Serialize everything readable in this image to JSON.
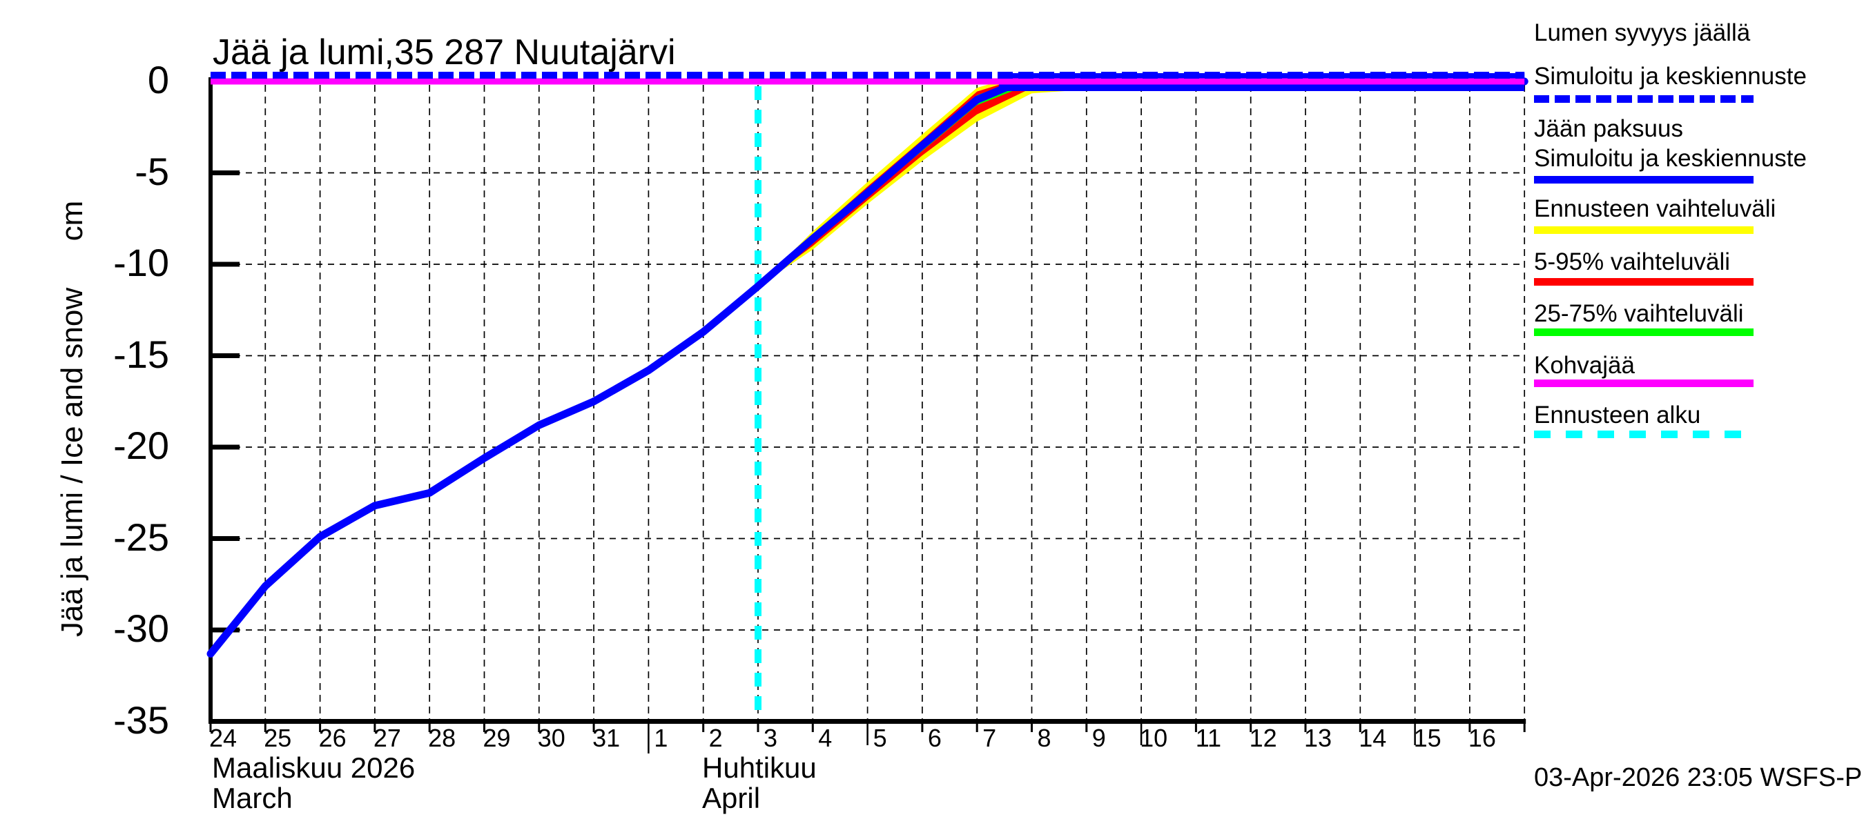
{
  "title": "Jää ja lumi,35 287 Nuutajärvi",
  "y_axis": {
    "label": "Jää ja lumi / Ice and snow",
    "unit": "cm",
    "tick_labels": [
      "0",
      "-5",
      "-10",
      "-15",
      "-20",
      "-25",
      "-30",
      "-35"
    ]
  },
  "x_axis": {
    "march": {
      "days": [
        "24",
        "25",
        "26",
        "27",
        "28",
        "29",
        "30",
        "31"
      ],
      "month_fi": "Maaliskuu 2026",
      "month_en": "March"
    },
    "april": {
      "days": [
        "1",
        "2",
        "3",
        "4",
        "5",
        "6",
        "7",
        "8",
        "9",
        "10",
        "11",
        "12",
        "13",
        "14",
        "15",
        "16"
      ],
      "month_fi": "Huhtikuu",
      "month_en": "April"
    }
  },
  "footer": "03-Apr-2026 23:05 WSFS-P",
  "colors": {
    "simulated": "#0000ff",
    "forecast_range": "#ffff00",
    "range_5_95": "#ff0000",
    "range_25_75": "#00ff00",
    "kohvajaa": "#ff00ff",
    "forecast_start": "#00ffff",
    "grid": "#000000"
  },
  "legend": [
    {
      "lines": [
        "Lumen syvyys jäällä",
        "Simuloitu ja keskiennuste"
      ],
      "color": "#0000ff",
      "style": "dashed"
    },
    {
      "lines": [
        "Jään paksuus",
        "Simuloitu ja keskiennuste"
      ],
      "color": "#0000ff",
      "style": "solid"
    },
    {
      "lines": [
        "Ennusteen vaihteluväli"
      ],
      "color": "#ffff00",
      "style": "solid"
    },
    {
      "lines": [
        "5-95% vaihteluväli"
      ],
      "color": "#ff0000",
      "style": "solid"
    },
    {
      "lines": [
        "25-75% vaihteluväli"
      ],
      "color": "#00ff00",
      "style": "solid"
    },
    {
      "lines": [
        "Kohvajää"
      ],
      "color": "#ff00ff",
      "style": "solid"
    },
    {
      "lines": [
        "Ennusteen alku"
      ],
      "color": "#00ffff",
      "style": "dashed"
    }
  ],
  "chart_data": {
    "type": "line",
    "title": "Jää ja lumi,35 287 Nuutajärvi",
    "ylabel": "Jää ja lumi / Ice and snow (cm)",
    "ylim": [
      -35,
      0
    ],
    "x_unit": "days_since_2026-03-24",
    "x_range": [
      0,
      24
    ],
    "x_tick_days": [
      "24 Mar",
      "25 Mar",
      "26 Mar",
      "27 Mar",
      "28 Mar",
      "29 Mar",
      "30 Mar",
      "31 Mar",
      "1 Apr",
      "2 Apr",
      "3 Apr",
      "4 Apr",
      "5 Apr",
      "6 Apr",
      "7 Apr",
      "8 Apr",
      "9 Apr",
      "10 Apr",
      "11 Apr",
      "12 Apr",
      "13 Apr",
      "14 Apr",
      "15 Apr",
      "16 Apr"
    ],
    "grid": true,
    "forecast_start_x": 10,
    "series": [
      {
        "name": "Lumen syvyys jäällä — Simuloitu ja keskiennuste",
        "type": "line",
        "style": "dashed",
        "color": "#0000ff",
        "points": [
          [
            0,
            0
          ],
          [
            24,
            0
          ]
        ]
      },
      {
        "name": "Kohvajää",
        "type": "line",
        "style": "solid",
        "color": "#ff00ff",
        "points": [
          [
            0,
            0
          ],
          [
            24,
            0
          ]
        ]
      },
      {
        "name": "Jään paksuus — Simuloitu ja keskiennuste",
        "type": "line",
        "style": "solid",
        "color": "#0000ff",
        "points": [
          [
            0,
            -31.3
          ],
          [
            1,
            -27.6
          ],
          [
            2,
            -24.9
          ],
          [
            3,
            -23.2
          ],
          [
            4,
            -22.5
          ],
          [
            5,
            -20.6
          ],
          [
            6,
            -18.8
          ],
          [
            7,
            -17.5
          ],
          [
            8,
            -15.8
          ],
          [
            9,
            -13.7
          ],
          [
            10,
            -11.2
          ],
          [
            11,
            -8.6
          ],
          [
            12,
            -6.1
          ],
          [
            13,
            -3.5
          ],
          [
            14,
            -1.0
          ],
          [
            14.6,
            -0.25
          ],
          [
            15,
            0
          ],
          [
            24,
            0
          ]
        ]
      },
      {
        "name": "Ennusteen vaihteluväli",
        "type": "band",
        "color": "#ffff00",
        "upper": [
          [
            10,
            -11.2
          ],
          [
            11,
            -8.2
          ],
          [
            12,
            -5.5
          ],
          [
            13,
            -2.9
          ],
          [
            14,
            -0.35
          ],
          [
            14.4,
            0
          ],
          [
            18.1,
            0
          ]
        ],
        "lower": [
          [
            10,
            -11.2
          ],
          [
            11,
            -9.2
          ],
          [
            12,
            -6.7
          ],
          [
            13,
            -4.35
          ],
          [
            14,
            -2.2
          ],
          [
            15,
            -0.65
          ],
          [
            16,
            -0.45
          ],
          [
            17,
            -0.25
          ],
          [
            18.1,
            0
          ]
        ]
      },
      {
        "name": "5-95% vaihteluväli",
        "type": "band",
        "color": "#ff0000",
        "upper": [
          [
            10,
            -11.2
          ],
          [
            11,
            -8.4
          ],
          [
            12,
            -5.75
          ],
          [
            13,
            -3.2
          ],
          [
            14,
            -0.55
          ],
          [
            14.6,
            0
          ],
          [
            15.6,
            0
          ]
        ],
        "lower": [
          [
            10,
            -11.2
          ],
          [
            11,
            -9.0
          ],
          [
            12,
            -6.5
          ],
          [
            13,
            -4.05
          ],
          [
            14,
            -1.8
          ],
          [
            14.9,
            -0.5
          ],
          [
            15.6,
            0
          ]
        ]
      },
      {
        "name": "25-75% vaihteluväli",
        "type": "band",
        "color": "#00ff00",
        "upper": [
          [
            10,
            -11.2
          ],
          [
            11,
            -8.5
          ],
          [
            12,
            -5.9
          ],
          [
            13,
            -3.35
          ],
          [
            14,
            -0.75
          ],
          [
            14.7,
            0
          ],
          [
            15.3,
            0
          ]
        ],
        "lower": [
          [
            10,
            -11.2
          ],
          [
            11,
            -8.8
          ],
          [
            12,
            -6.3
          ],
          [
            13,
            -3.8
          ],
          [
            14,
            -1.3
          ],
          [
            14.8,
            -0.35
          ],
          [
            15.3,
            0
          ]
        ]
      }
    ]
  }
}
